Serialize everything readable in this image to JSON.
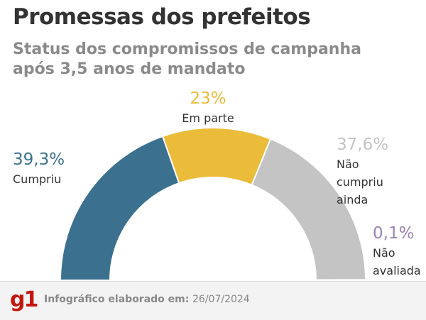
{
  "chart_data": {
    "type": "donut",
    "title": "Promessas dos prefeitos",
    "subtitle": "Status dos compromissos de campanha após 3,5 anos de mandato",
    "categories": [
      "Cumpriu",
      "Em parte",
      "Não cumpriu ainda",
      "Não avaliada"
    ],
    "values": [
      39.3,
      23,
      37.6,
      0.1
    ],
    "value_labels": [
      "39,3%",
      "23%",
      "37,6%",
      "0,1%"
    ],
    "colors": [
      "#3b718f",
      "#ebbb3a",
      "#c4c4c4",
      "#9b84b5"
    ]
  },
  "footer": {
    "logo": "g1",
    "label": "Infográfico elaborado em:",
    "date": "26/07/2024"
  }
}
